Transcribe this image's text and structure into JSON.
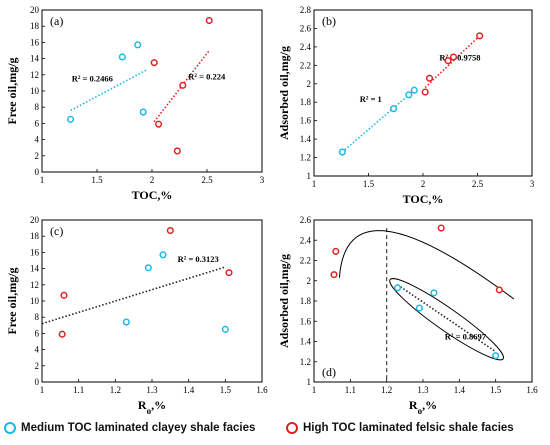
{
  "colors": {
    "medium": "#19b8e6",
    "high": "#e02020"
  },
  "legend": {
    "medium": "Medium TOC laminated clayey shale facies",
    "high": "High TOC  laminated felsic shale facies"
  },
  "chart_data": [
    {
      "type": "scatter",
      "panel_label": "(a)",
      "xlabel": "TOC,%",
      "ylabel": "Free oil,mg/g",
      "xlim": [
        1,
        3
      ],
      "ylim": [
        0,
        20
      ],
      "xticks": [
        1,
        1.5,
        2,
        2.5,
        3
      ],
      "xtick_labels": [
        "1",
        "1.5",
        "2",
        "2.5",
        "3"
      ],
      "yticks": [
        0,
        2,
        4,
        6,
        8,
        10,
        12,
        14,
        16,
        18,
        20
      ],
      "ytick_labels": [
        "0",
        "2",
        "4",
        "6",
        "8",
        "10",
        "12",
        "14",
        "16",
        "18",
        "20"
      ],
      "series": [
        {
          "key": "medium",
          "points": [
            [
              1.26,
              6.5
            ],
            [
              1.73,
              14.2
            ],
            [
              1.87,
              15.7
            ],
            [
              1.92,
              7.4
            ]
          ],
          "trend": {
            "from": [
              1.26,
              7.6
            ],
            "to": [
              1.95,
              12.6
            ],
            "label": "R² = 0.2466",
            "label_at": [
              1.27,
              11.2
            ]
          }
        },
        {
          "key": "high",
          "points": [
            [
              2.02,
              13.5
            ],
            [
              2.06,
              5.9
            ],
            [
              2.23,
              2.6
            ],
            [
              2.28,
              10.7
            ],
            [
              2.52,
              18.7
            ]
          ],
          "trend": {
            "from": [
              2.02,
              6.2
            ],
            "to": [
              2.52,
              15.0
            ],
            "label": "R² = 0.224",
            "label_at": [
              2.33,
              11.4
            ]
          }
        }
      ]
    },
    {
      "type": "scatter",
      "panel_label": "(b)",
      "xlabel": "TOC,%",
      "ylabel": "Adsorbed oil,mg/g",
      "xlim": [
        1,
        3
      ],
      "ylim": [
        1,
        2.8
      ],
      "xticks": [
        1,
        1.5,
        2,
        2.5,
        3
      ],
      "xtick_labels": [
        "1",
        "1.5",
        "2",
        "2.5",
        "3"
      ],
      "yticks": [
        1,
        1.2,
        1.4,
        1.6,
        1.8,
        2,
        2.2,
        2.4,
        2.6,
        2.8
      ],
      "ytick_labels": [
        "1",
        "1.2",
        "1.4",
        "1.6",
        "1.8",
        "2",
        "2.2",
        "2.4",
        "2.6",
        "2.8"
      ],
      "series": [
        {
          "key": "medium",
          "points": [
            [
              1.26,
              1.26
            ],
            [
              1.73,
              1.73
            ],
            [
              1.87,
              1.88
            ],
            [
              1.92,
              1.93
            ]
          ],
          "trend": {
            "from": [
              1.26,
              1.26
            ],
            "to": [
              1.92,
              1.93
            ],
            "label": "R² = 1",
            "label_at": [
              1.42,
              1.8
            ]
          }
        },
        {
          "key": "high",
          "points": [
            [
              2.02,
              1.91
            ],
            [
              2.06,
              2.06
            ],
            [
              2.23,
              2.25
            ],
            [
              2.28,
              2.29
            ],
            [
              2.52,
              2.52
            ]
          ],
          "trend": {
            "from": [
              2.02,
              1.96
            ],
            "to": [
              2.52,
              2.52
            ],
            "label": "R² = 0.9758",
            "label_at": [
              2.15,
              2.25
            ]
          }
        }
      ]
    },
    {
      "type": "scatter",
      "panel_label": "(c)",
      "xlabel": "Ro,%",
      "ylabel": "Free oil,mg/g",
      "xlim": [
        1,
        1.6
      ],
      "ylim": [
        0,
        20
      ],
      "xticks": [
        1,
        1.1,
        1.2,
        1.3,
        1.4,
        1.5,
        1.6
      ],
      "xtick_labels": [
        "1",
        "1.1",
        "1.2",
        "1.3",
        "1.4",
        "1.5",
        "1.6"
      ],
      "yticks": [
        0,
        2,
        4,
        6,
        8,
        10,
        12,
        14,
        16,
        18,
        20
      ],
      "ytick_labels": [
        "0",
        "2",
        "4",
        "6",
        "8",
        "10",
        "12",
        "14",
        "16",
        "18",
        "20"
      ],
      "series": [
        {
          "key": "medium",
          "points": [
            [
              1.23,
              7.4
            ],
            [
              1.29,
              14.1
            ],
            [
              1.33,
              15.7
            ],
            [
              1.5,
              6.5
            ]
          ]
        },
        {
          "key": "high",
          "points": [
            [
              1.055,
              5.9
            ],
            [
              1.06,
              10.7
            ],
            [
              1.35,
              18.7
            ],
            [
              1.51,
              13.5
            ]
          ]
        }
      ],
      "trend": {
        "from": [
          1.0,
          7.2
        ],
        "to": [
          1.5,
          14.2
        ],
        "label": "R² = 0.3123",
        "label_at": [
          1.37,
          14.8
        ]
      }
    },
    {
      "type": "scatter",
      "panel_label": "(d)",
      "xlabel": "Ro,%",
      "ylabel": "Adsorbed oil,mg/g",
      "xlim": [
        1,
        1.6
      ],
      "ylim": [
        1,
        2.6
      ],
      "xticks": [
        1,
        1.1,
        1.2,
        1.3,
        1.4,
        1.5,
        1.6
      ],
      "xtick_labels": [
        "1",
        "1.1",
        "1.2",
        "1.3",
        "1.4",
        "1.5",
        "1.6"
      ],
      "yticks": [
        1,
        1.2,
        1.4,
        1.6,
        1.8,
        2,
        2.2,
        2.4,
        2.6
      ],
      "ytick_labels": [
        "1",
        "1.2",
        "1.4",
        "1.6",
        "1.8",
        "2",
        "2.2",
        "2.4",
        "2.6"
      ],
      "series": [
        {
          "key": "medium",
          "points": [
            [
              1.23,
              1.93
            ],
            [
              1.29,
              1.73
            ],
            [
              1.33,
              1.88
            ],
            [
              1.5,
              1.26
            ]
          ]
        },
        {
          "key": "high",
          "points": [
            [
              1.055,
              2.06
            ],
            [
              1.06,
              2.29
            ],
            [
              1.35,
              2.52
            ],
            [
              1.51,
              1.91
            ]
          ]
        }
      ],
      "trend": {
        "from": [
          1.23,
          1.96
        ],
        "to": [
          1.5,
          1.3
        ],
        "label": "R² = 0.8697",
        "label_at": [
          1.36,
          1.42
        ]
      },
      "vline": 1.2,
      "curve": [
        [
          1.07,
          2.03
        ],
        [
          1.2,
          2.49
        ],
        [
          1.55,
          1.82
        ]
      ],
      "ellipse": {
        "center": [
          1.365,
          1.62
        ],
        "rx": 0.19,
        "ry": 0.11,
        "angle": 35
      }
    }
  ]
}
